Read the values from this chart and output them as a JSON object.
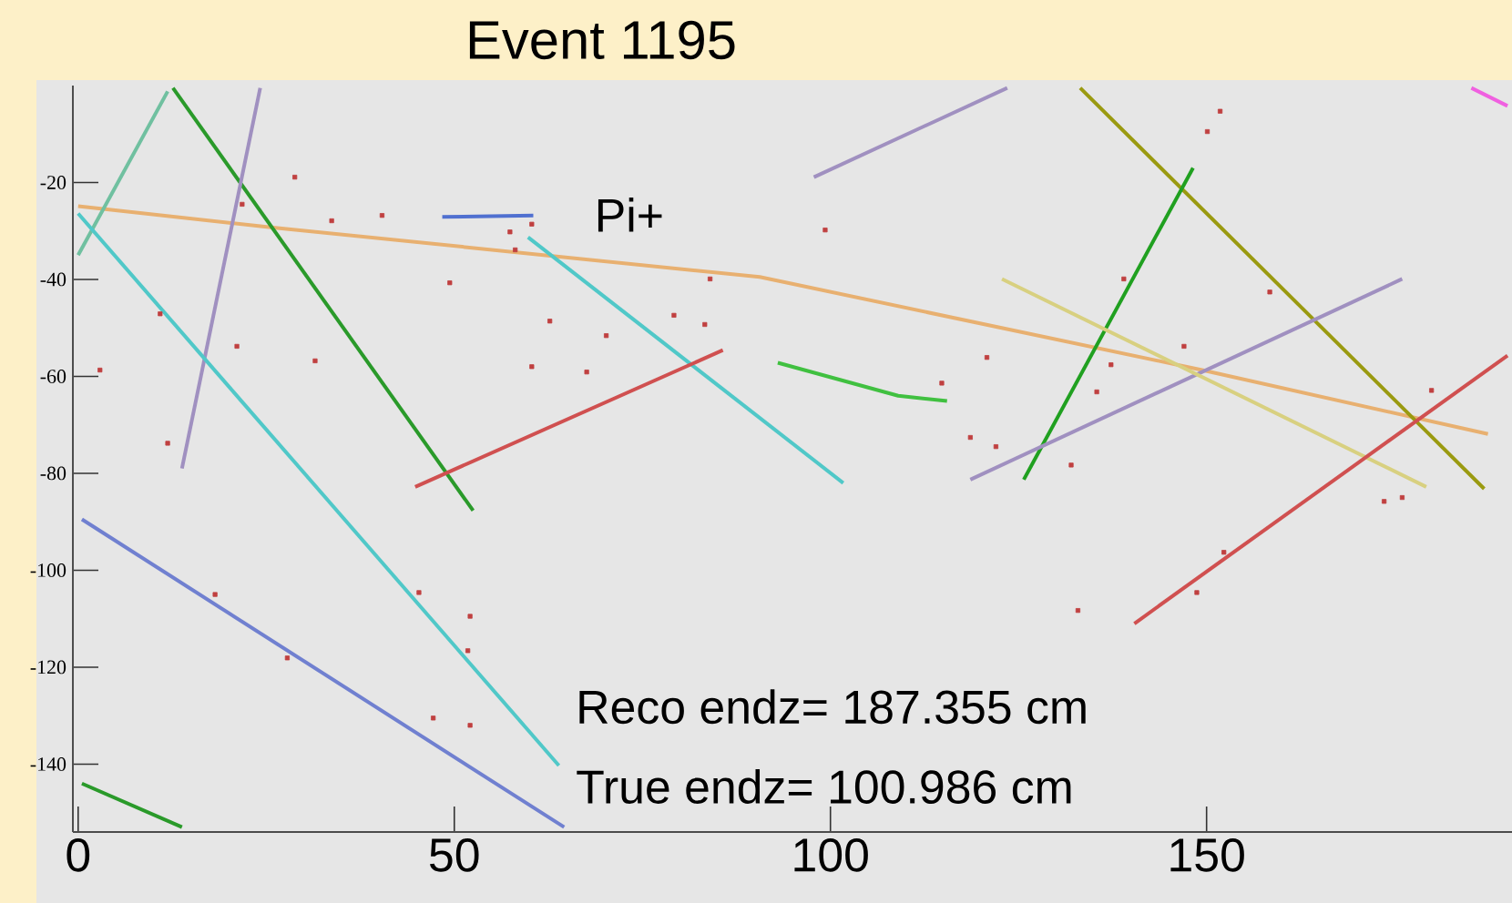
{
  "chart_data": {
    "type": "line",
    "title": "Event 1195",
    "xlim": [
      -0.7,
      190.6
    ],
    "ylim": [
      -154,
      0
    ],
    "xticks": [
      0,
      50,
      100,
      150
    ],
    "yticks": [
      -140,
      -120,
      -100,
      -80,
      -60,
      -40,
      -20
    ],
    "grid": false,
    "annotations": [
      "Pi+",
      "Reco endz= 187.355 cm",
      "True endz= 100.986 cm"
    ],
    "series": [
      {
        "type": "line",
        "color": "#e8b070",
        "x": [
          0,
          25.9,
          90.6,
          149.4,
          187.4
        ],
        "values": [
          -24.9,
          -29.3,
          -39.5,
          -58.7,
          -71.9
        ]
      },
      {
        "type": "line",
        "color": "#2a9a2a",
        "x": [
          12.6,
          52.5
        ],
        "values": [
          -0.5,
          -87.7
        ]
      },
      {
        "type": "line",
        "color": "#70c0a0",
        "x": [
          0,
          11.9
        ],
        "values": [
          -35,
          -1.2
        ]
      },
      {
        "type": "line",
        "color": "#a090c0",
        "x": [
          13.8,
          24.2
        ],
        "values": [
          -79,
          -0.5
        ]
      },
      {
        "type": "line",
        "color": "#50c8c8",
        "x": [
          0,
          63.9
        ],
        "values": [
          -26.4,
          -140.3
        ]
      },
      {
        "type": "line",
        "color": "#50c8c8",
        "x": [
          59.8,
          101.7
        ],
        "values": [
          -31.3,
          -82
        ]
      },
      {
        "type": "line",
        "color": "#d05050",
        "x": [
          44.8,
          85.7
        ],
        "values": [
          -82.8,
          -54.6
        ]
      },
      {
        "type": "line",
        "color": "#7080d0",
        "x": [
          0.5,
          64.6
        ],
        "values": [
          -89.5,
          -153
        ]
      },
      {
        "type": "line",
        "color": "#2a9a2a",
        "x": [
          0.5,
          13.8
        ],
        "values": [
          -144,
          -153
        ]
      },
      {
        "type": "line",
        "color": "#a090c0",
        "x": [
          97.8,
          123.5
        ],
        "values": [
          -18.9,
          -0.5
        ]
      },
      {
        "type": "line",
        "color": "#9a9a10",
        "x": [
          133.2,
          186.9
        ],
        "values": [
          -0.5,
          -83.2
        ]
      },
      {
        "type": "line",
        "color": "#20a020",
        "x": [
          125.7,
          148.2
        ],
        "values": [
          -81.3,
          -17
        ]
      },
      {
        "type": "line",
        "color": "#a090c0",
        "x": [
          118.6,
          176
        ],
        "values": [
          -81.3,
          -39.9
        ]
      },
      {
        "type": "line",
        "color": "#d8d080",
        "x": [
          122.8,
          179.2
        ],
        "values": [
          -39.9,
          -82.8
        ]
      },
      {
        "type": "line",
        "color": "#40c040",
        "x": [
          93,
          109,
          115.5
        ],
        "values": [
          -57.2,
          -64,
          -65.1
        ]
      },
      {
        "type": "line",
        "color": "#d05050",
        "x": [
          140.4,
          190
        ],
        "values": [
          -111,
          -55.7
        ]
      },
      {
        "type": "line",
        "color": "#f060e0",
        "x": [
          185.2,
          190
        ],
        "values": [
          -0.5,
          -4.2
        ]
      },
      {
        "type": "line",
        "color": "#5070d0",
        "x": [
          48.4,
          60.5
        ],
        "values": [
          -27.1,
          -26.8
        ]
      },
      {
        "type": "scatter",
        "color": "#c04040",
        "x": [
          28.8,
          33.7,
          40.4,
          49.4,
          57.4,
          58.1,
          60.3,
          62.7,
          60.3,
          67.6,
          70.2,
          83.3,
          79.2,
          84,
          21.8,
          21.1,
          2.9,
          11.9,
          31.5,
          10.9,
          18.2,
          27.8,
          52.1,
          51.8,
          47.2,
          52.1,
          45.3,
          99.3,
          139,
          137.3,
          135.4,
          147,
          150.1,
          151.8,
          158.4,
          179.9,
          176,
          120.8,
          122,
          132,
          114.8,
          118.6,
          132.9,
          148.7,
          173.6,
          152.3
        ],
        "values": [
          -18.9,
          -27.9,
          -26.8,
          -40.7,
          -30.2,
          -33.9,
          -28.6,
          -48.6,
          -58,
          -59.1,
          -51.6,
          -49.3,
          -47.4,
          -39.9,
          -24.5,
          -53.8,
          -58.7,
          -73.8,
          -56.8,
          -47.1,
          -105,
          -118.1,
          -109.5,
          -116.6,
          -130.5,
          -132,
          -104.6,
          -29.8,
          -39.9,
          -57.6,
          -63.2,
          -53.8,
          -9.5,
          -5.3,
          -42.6,
          -62.9,
          -85,
          -56.1,
          -74.5,
          -78.3,
          -61.4,
          -72.6,
          -108.3,
          -104.6,
          -85.8,
          -96.3
        ]
      }
    ]
  }
}
